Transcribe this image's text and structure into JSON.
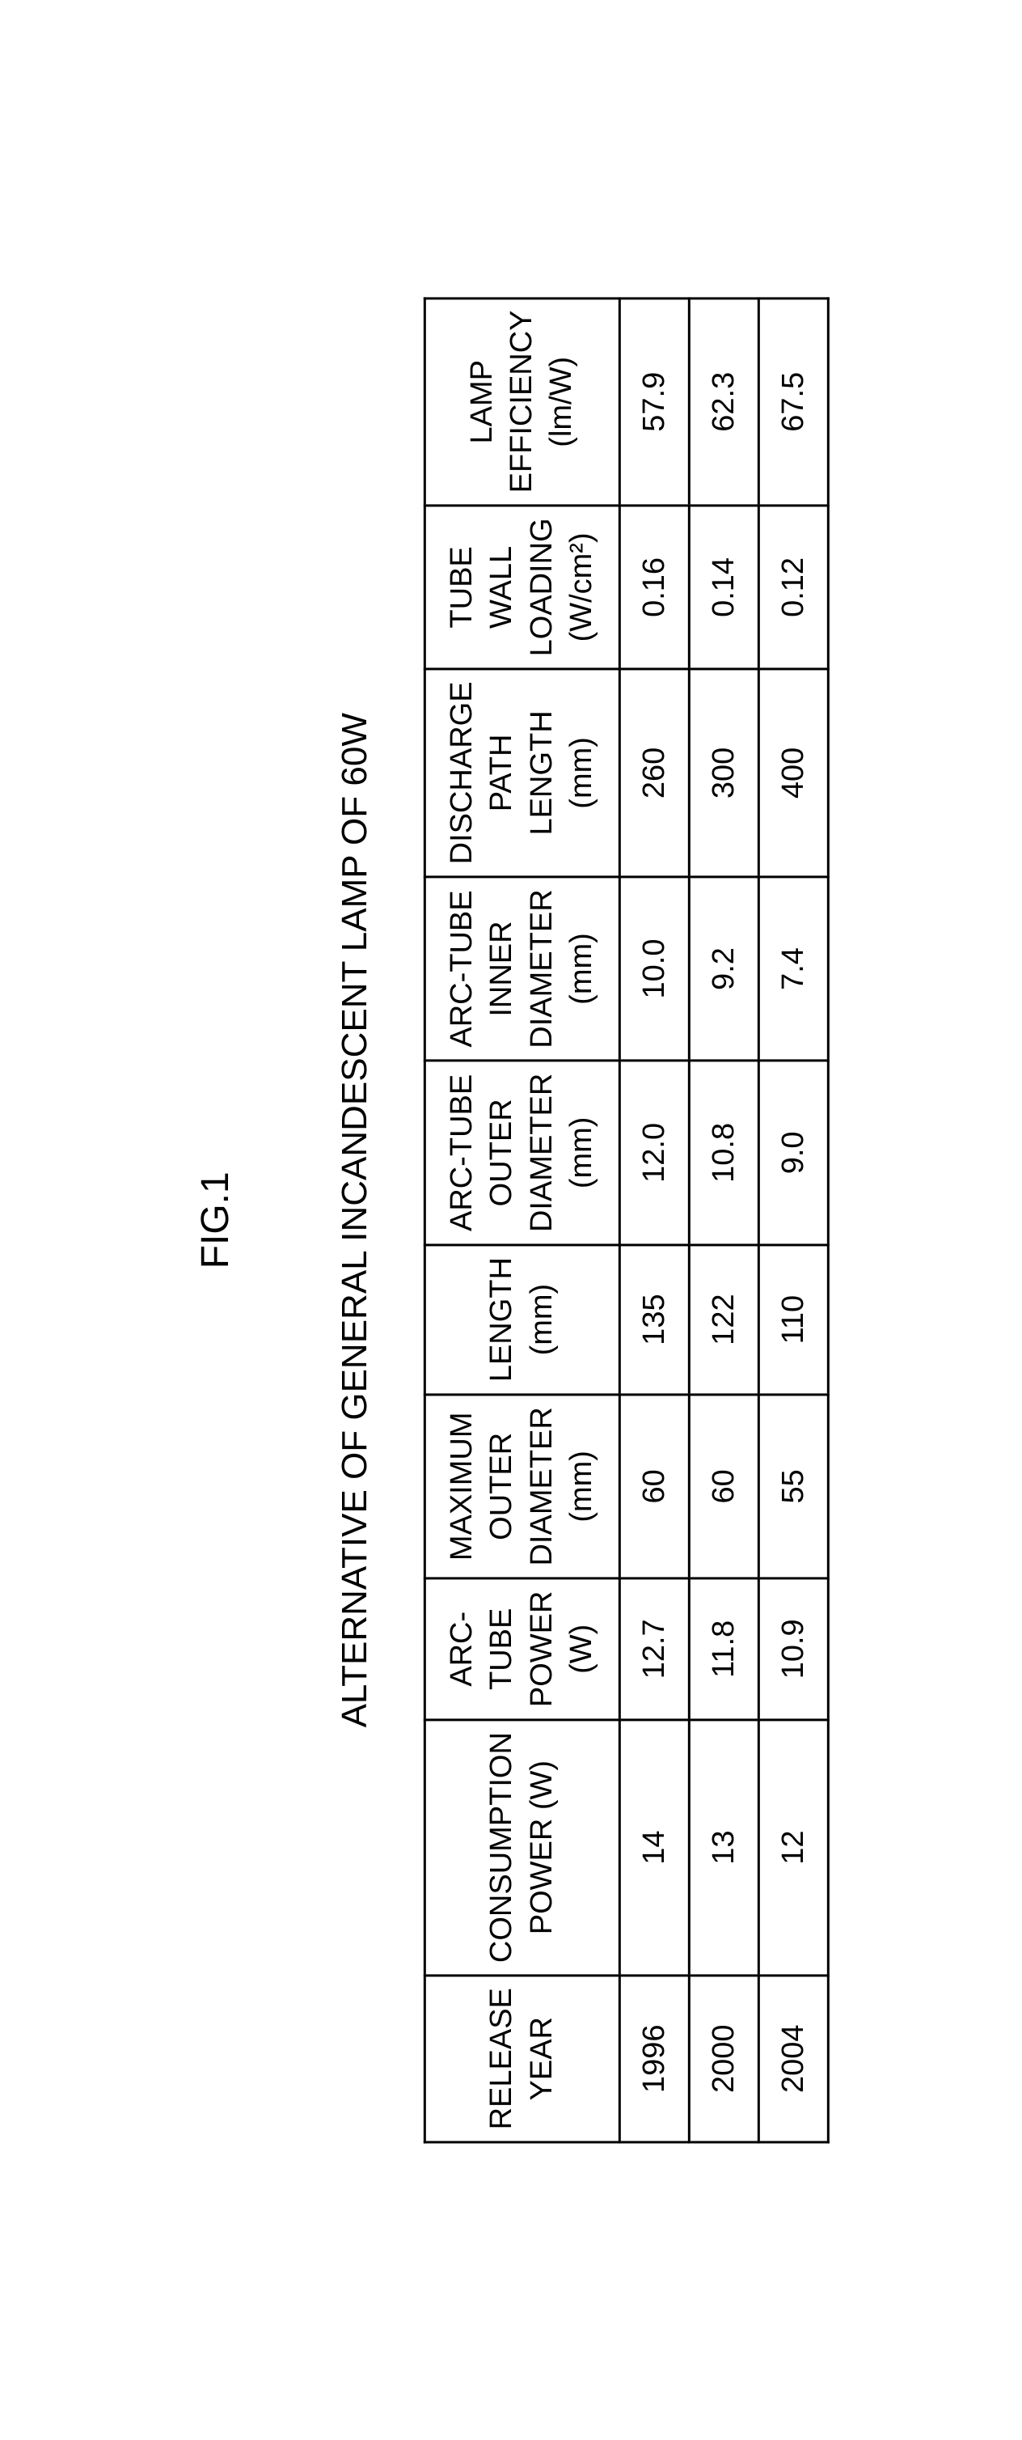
{
  "figure_label": "FIG.1",
  "table_title": "ALTERNATIVE OF GENERAL INCANDESCENT LAMP OF 60W",
  "table": {
    "type": "table",
    "columns": [
      {
        "header": "RELEASE YEAR",
        "key": "release_year"
      },
      {
        "header": "CONSUMPTION POWER (W)",
        "key": "consumption_power"
      },
      {
        "header": "ARC-TUBE POWER (W)",
        "key": "arctube_power"
      },
      {
        "header": "MAXIMUM OUTER DIAMETER (mm)",
        "key": "max_outer_diameter"
      },
      {
        "header": "LENGTH (mm)",
        "key": "length"
      },
      {
        "header": "ARC-TUBE OUTER DIAMETER (mm)",
        "key": "arctube_outer_diameter"
      },
      {
        "header": "ARC-TUBE INNER DIAMETER (mm)",
        "key": "arctube_inner_diameter"
      },
      {
        "header": "DISCHARGE PATH LENGTH (mm)",
        "key": "discharge_path_length"
      },
      {
        "header": "TUBE WALL LOADING (W/cm²)",
        "key": "tube_wall_loading"
      },
      {
        "header": "LAMP EFFICIENCY (lm/W)",
        "key": "lamp_efficiency"
      }
    ],
    "rows": [
      {
        "release_year": "1996",
        "consumption_power": "14",
        "arctube_power": "12.7",
        "max_outer_diameter": "60",
        "length": "135",
        "arctube_outer_diameter": "12.0",
        "arctube_inner_diameter": "10.0",
        "discharge_path_length": "260",
        "tube_wall_loading": "0.16",
        "lamp_efficiency": "57.9"
      },
      {
        "release_year": "2000",
        "consumption_power": "13",
        "arctube_power": "11.8",
        "max_outer_diameter": "60",
        "length": "122",
        "arctube_outer_diameter": "10.8",
        "arctube_inner_diameter": "9.2",
        "discharge_path_length": "300",
        "tube_wall_loading": "0.14",
        "lamp_efficiency": "62.3"
      },
      {
        "release_year": "2004",
        "consumption_power": "12",
        "arctube_power": "10.9",
        "max_outer_diameter": "55",
        "length": "110",
        "arctube_outer_diameter": "9.0",
        "arctube_inner_diameter": "7.4",
        "discharge_path_length": "400",
        "tube_wall_loading": "0.12",
        "lamp_efficiency": "67.5"
      }
    ],
    "border_color": "#000000",
    "border_width": 3,
    "background_color": "#ffffff",
    "font_size_header": 38,
    "font_size_data": 38,
    "text_color": "#000000"
  },
  "rotation_degrees": -90
}
